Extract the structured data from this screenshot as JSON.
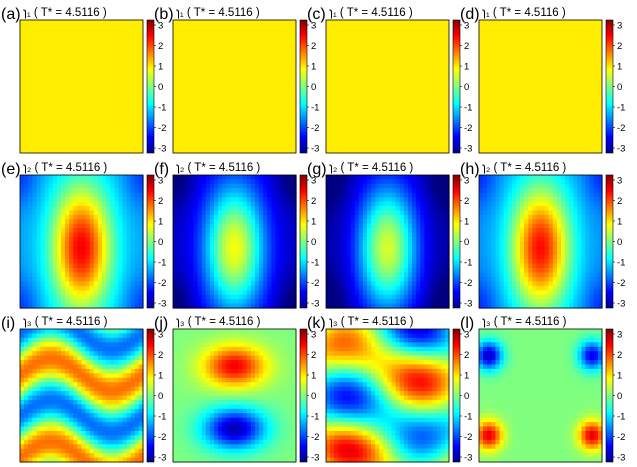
{
  "chart_data": {
    "type": "heatmap",
    "colorbar": {
      "min": -3,
      "max": 3,
      "ticks": [
        "3",
        "2",
        "1",
        "0",
        "-1",
        "-2",
        "-3"
      ],
      "colors": [
        "#00008f",
        "#0000ff",
        "#00ffff",
        "#ffff00",
        "#ff0000",
        "#800000"
      ]
    },
    "rows": [
      {
        "panels": [
          {
            "letter": "(a)",
            "title": "ɿ₁ ( T* = 4.5116 )",
            "uniform_value": 0.85
          },
          {
            "letter": "(b)",
            "title": "ɿ₁ ( T* = 4.5116 )",
            "uniform_value": 0.85
          },
          {
            "letter": "(c)",
            "title": "ɿ₁ ( T* = 4.5116 )",
            "uniform_value": 0.85
          },
          {
            "letter": "(d)",
            "title": "ɿ₁ ( T* = 4.5116 )",
            "uniform_value": 0.85
          }
        ]
      },
      {
        "panels": [
          {
            "letter": "(e)",
            "title": "ɿ₂ ( T* = 4.5116 )",
            "pattern": "central-max",
            "min": -1.3,
            "max": 2.3
          },
          {
            "letter": "(f)",
            "title": "ɿ₂ ( T* = 4.5116 )",
            "pattern": "central-max",
            "min": -2.6,
            "max": 0.7
          },
          {
            "letter": "(g)",
            "title": "ɿ₂ ( T* = 4.5116 )",
            "pattern": "central-max",
            "min": -2.8,
            "max": 0.5
          },
          {
            "letter": "(h)",
            "title": "ɿ₂ ( T* = 4.5116 )",
            "pattern": "central-max",
            "min": -1.4,
            "max": 2.2
          }
        ]
      },
      {
        "panels": [
          {
            "letter": "(i)",
            "title": "ɿ₃ ( T* = 4.5116 )",
            "pattern": "wavy-bands"
          },
          {
            "letter": "(j)",
            "title": "ɿ₃ ( T* = 4.5116 )",
            "pattern": "dipole-vertical"
          },
          {
            "letter": "(k)",
            "title": "ɿ₃ ( T* = 4.5116 )",
            "pattern": "mixed"
          },
          {
            "letter": "(l)",
            "title": "ɿ₃ ( T* = 4.5116 )",
            "pattern": "quadrupole"
          }
        ]
      }
    ]
  }
}
